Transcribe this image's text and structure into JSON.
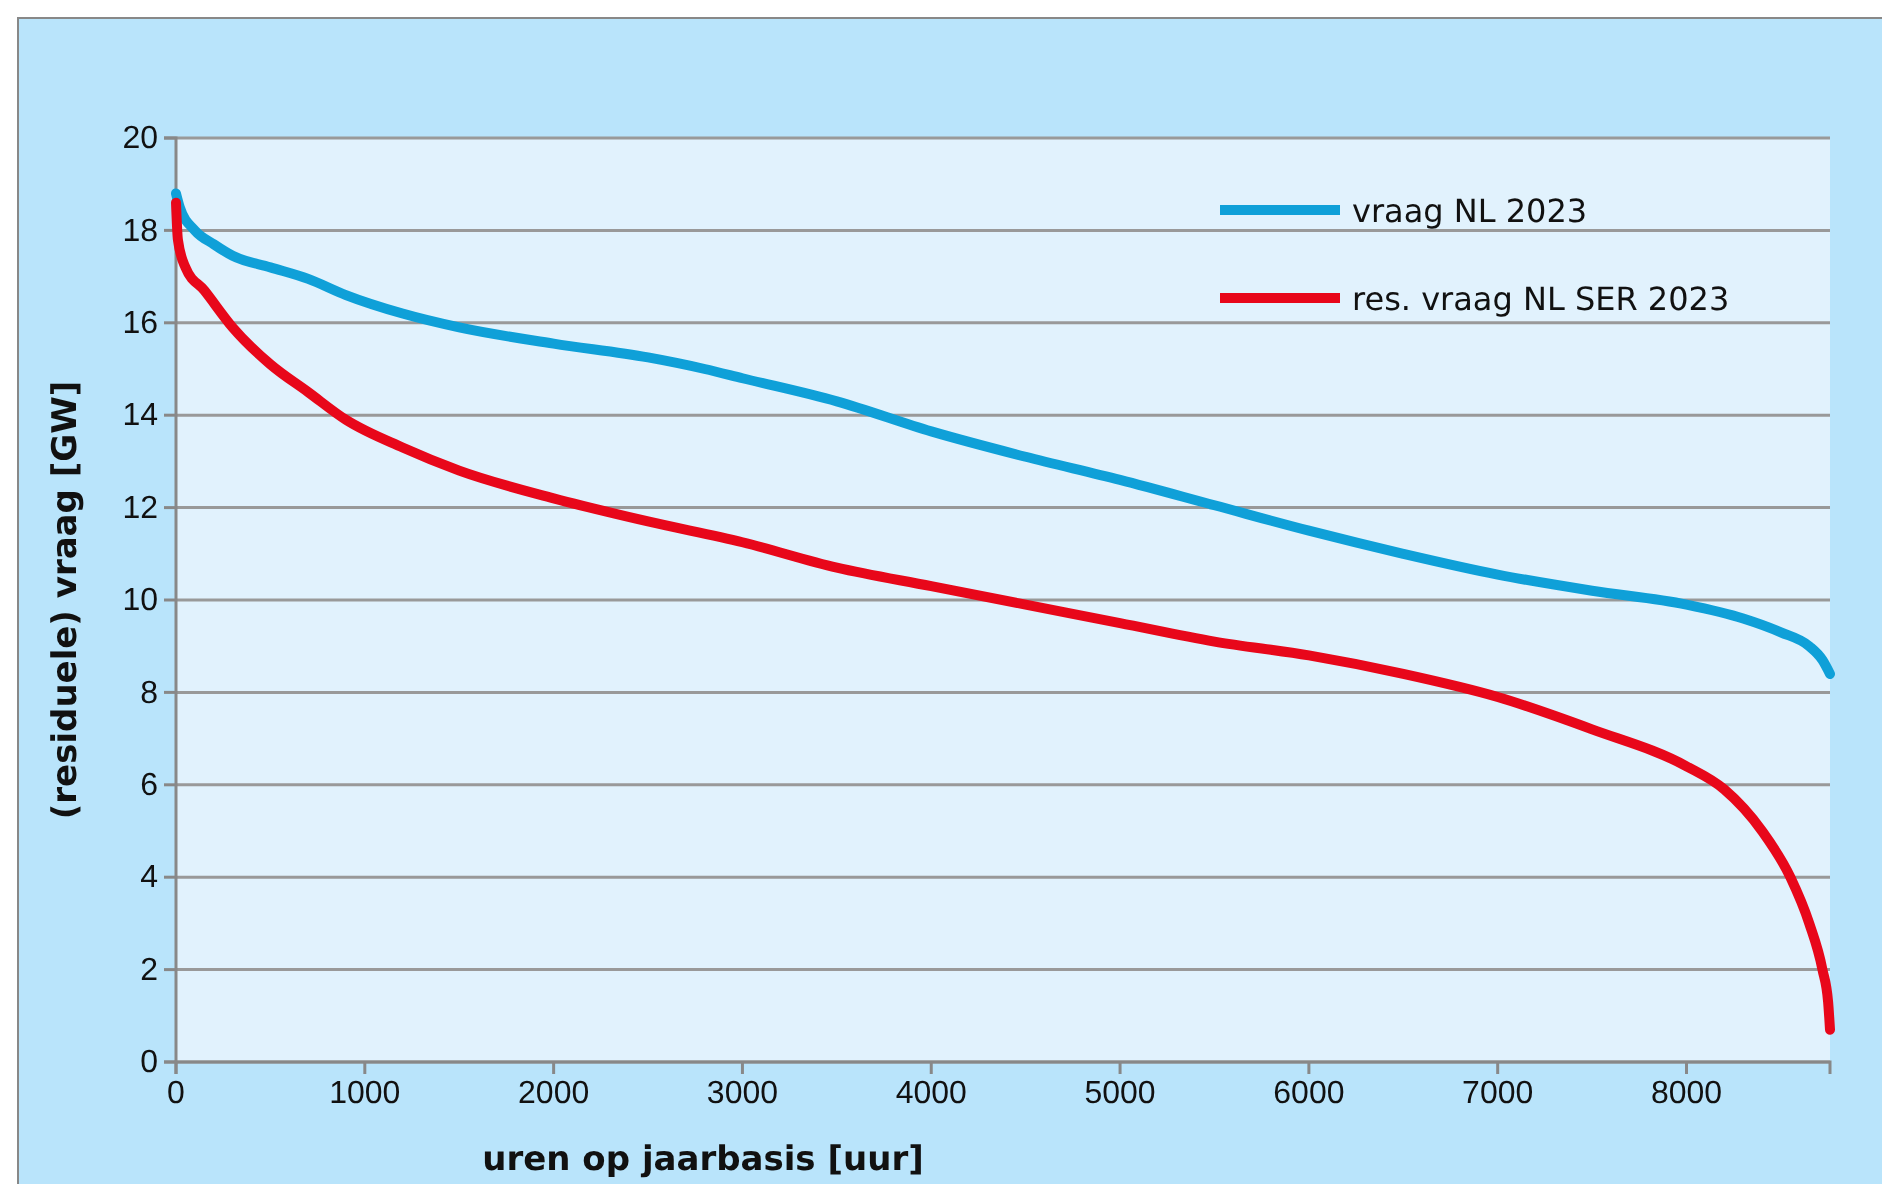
{
  "chart_data": {
    "type": "line",
    "xlabel": "uren op jaarbasis [uur]",
    "ylabel": "(residuele) vraag [GW]",
    "xlim": [
      0,
      8760
    ],
    "xticks": [
      0,
      1000,
      2000,
      3000,
      4000,
      5000,
      6000,
      7000,
      8000
    ],
    "ylim": [
      0,
      20
    ],
    "yticks": [
      0,
      2,
      4,
      6,
      8,
      10,
      12,
      14,
      16,
      18,
      20
    ],
    "grid": "y",
    "legend": "top right",
    "marker": "none",
    "line_style": "solid",
    "series": [
      {
        "name": "vraag NL 2023",
        "color": "#0fa0d8",
        "x": [
          0,
          20,
          100,
          200,
          300,
          500,
          700,
          900,
          1200,
          1500,
          2000,
          2500,
          2800,
          3000,
          3500,
          4000,
          4500,
          5000,
          5500,
          6000,
          6500,
          7000,
          7500,
          8000,
          8300,
          8500,
          8650,
          8720,
          8760
        ],
        "values": [
          18.8,
          18.5,
          18.0,
          17.7,
          17.45,
          17.2,
          16.95,
          16.6,
          16.2,
          15.9,
          15.55,
          15.25,
          15.0,
          14.8,
          14.3,
          13.65,
          13.1,
          12.6,
          12.05,
          11.5,
          11.0,
          10.55,
          10.2,
          9.9,
          9.6,
          9.3,
          9.0,
          8.7,
          8.4
        ]
      },
      {
        "name": "res. vraag NL SER 2023",
        "color": "#e8071a",
        "x": [
          0,
          10,
          50,
          150,
          300,
          500,
          700,
          900,
          1200,
          1500,
          2000,
          2500,
          3000,
          3500,
          4000,
          4500,
          5000,
          5500,
          6000,
          6500,
          7000,
          7500,
          8000,
          8200,
          8400,
          8550,
          8650,
          8720,
          8750,
          8760
        ],
        "values": [
          18.6,
          17.8,
          17.2,
          16.7,
          15.9,
          15.1,
          14.5,
          13.9,
          13.3,
          12.8,
          12.2,
          11.7,
          11.25,
          10.7,
          10.3,
          9.9,
          9.5,
          9.1,
          8.8,
          8.4,
          7.9,
          7.2,
          6.4,
          5.9,
          5.0,
          4.0,
          3.0,
          2.0,
          1.3,
          0.7
        ]
      }
    ]
  }
}
